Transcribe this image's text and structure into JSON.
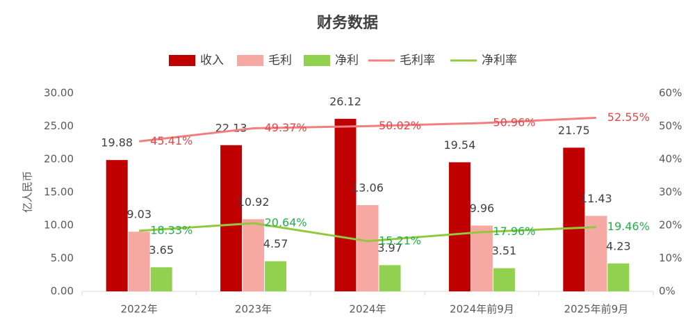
{
  "chart_data": {
    "type": "bar",
    "title": "财务数据",
    "y_label": "亿人民币",
    "categories": [
      "2022年",
      "2023年",
      "2024年",
      "2024年前9月",
      "2025年前9月"
    ],
    "series": [
      {
        "name": "收入",
        "color": "#c00000",
        "values": [
          19.88,
          22.13,
          26.12,
          19.54,
          21.75
        ]
      },
      {
        "name": "毛利",
        "color": "#f6a9a3",
        "values": [
          9.03,
          10.92,
          13.06,
          9.96,
          11.43
        ]
      },
      {
        "name": "净利",
        "color": "#92d050",
        "values": [
          3.65,
          4.57,
          3.97,
          3.51,
          4.23
        ]
      },
      {
        "name": "毛利率",
        "color": "#f08080",
        "type": "line",
        "axis": "y2",
        "label_color": "#e04848",
        "values": [
          45.41,
          49.37,
          50.02,
          50.96,
          52.55
        ],
        "value_labels": [
          "45.41%",
          "49.37%",
          "50.02%",
          "50.96%",
          "52.55%"
        ]
      },
      {
        "name": "净利率",
        "color": "#92c83e",
        "type": "line",
        "axis": "y2",
        "label_color": "#22b04a",
        "values": [
          18.33,
          20.64,
          15.21,
          17.96,
          19.46
        ],
        "value_labels": [
          "18.33%",
          "20.64%",
          "15.21%",
          "17.96%",
          "19.46%"
        ]
      }
    ],
    "ylim": [
      0,
      30
    ],
    "yticks": [
      {
        "value": 0,
        "label": "0.00"
      },
      {
        "value": 5,
        "label": "5.00"
      },
      {
        "value": 10,
        "label": "10.00"
      },
      {
        "value": 15,
        "label": "15.00"
      },
      {
        "value": 20,
        "label": "20.00"
      },
      {
        "value": 25,
        "label": "25.00"
      },
      {
        "value": 30,
        "label": "30.00"
      }
    ],
    "y2lim": [
      0,
      60
    ],
    "y2ticks": [
      {
        "value": 0,
        "label": "0%"
      },
      {
        "value": 10,
        "label": "10%"
      },
      {
        "value": 20,
        "label": "20%"
      },
      {
        "value": 30,
        "label": "30%"
      },
      {
        "value": 40,
        "label": "40%"
      },
      {
        "value": 50,
        "label": "50%"
      },
      {
        "value": 60,
        "label": "60%"
      }
    ]
  }
}
